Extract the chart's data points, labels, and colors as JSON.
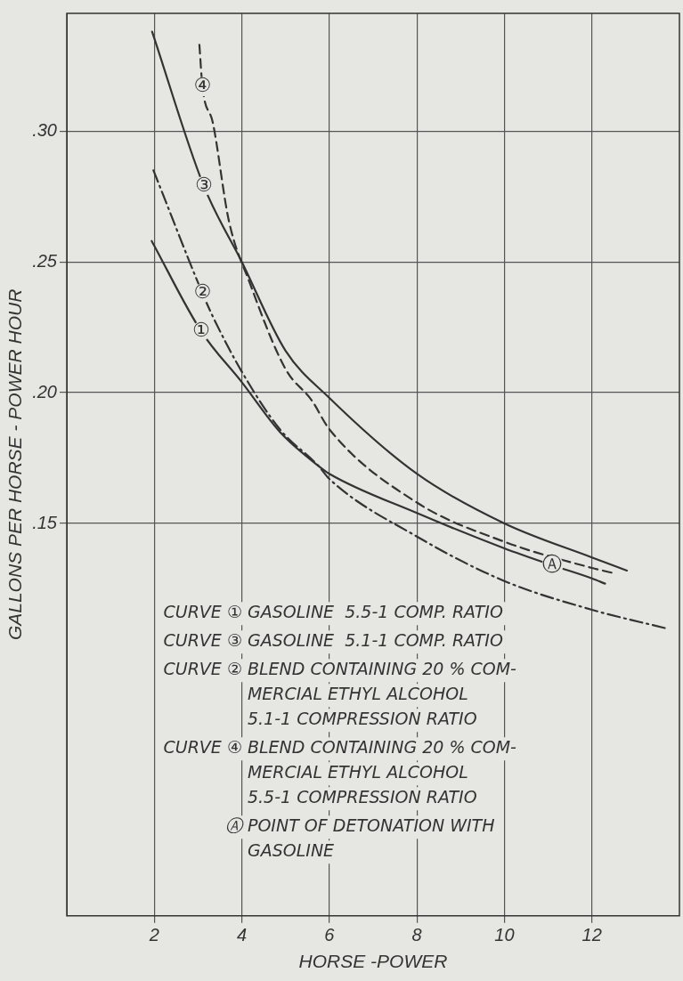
{
  "chart_data": {
    "type": "line",
    "xlabel": "HORSE -POWER",
    "ylabel": "GALLONS PER HORSE - POWER HOUR",
    "xlim": [
      0,
      14
    ],
    "xticks": [
      2,
      4,
      6,
      8,
      10,
      12
    ],
    "ylim": [
      0,
      0.345
    ],
    "yticks": [
      {
        "value": 0.15,
        "label": ".15"
      },
      {
        "value": 0.2,
        "label": ".20"
      },
      {
        "value": 0.25,
        "label": ".25"
      },
      {
        "value": 0.3,
        "label": ".30"
      }
    ],
    "grid": true,
    "legend": false,
    "marker": "none",
    "series": [
      {
        "name": "③",
        "color": "#333333",
        "line_style": "solid",
        "x": [
          1.95,
          3.13,
          4,
          5,
          6,
          8,
          10,
          12,
          12.8
        ],
        "values": [
          0.338,
          0.279,
          0.25,
          0.216,
          0.198,
          0.169,
          0.15,
          0.137,
          0.132
        ]
      },
      {
        "name": "④",
        "color": "#333333",
        "line_style": "dashed",
        "x": [
          3.03,
          3.1,
          3.34,
          3.7,
          4.18,
          5,
          5.6,
          6,
          8,
          10,
          12,
          12.5
        ],
        "values": [
          0.333,
          0.317,
          0.303,
          0.266,
          0.242,
          0.209,
          0.197,
          0.186,
          0.158,
          0.143,
          0.133,
          0.131
        ]
      },
      {
        "name": "②",
        "color": "#333333",
        "line_style": "dashdot",
        "x": [
          1.98,
          3.1,
          3.34,
          4,
          4.87,
          5.75,
          6,
          8,
          10,
          12,
          13.67
        ],
        "values": [
          0.285,
          0.238,
          0.229,
          0.208,
          0.186,
          0.172,
          0.167,
          0.145,
          0.128,
          0.117,
          0.11
        ]
      },
      {
        "name": "①",
        "color": "#333333",
        "line_style": "solid",
        "x": [
          1.94,
          3.07,
          4,
          4.87,
          5.75,
          6,
          8,
          10,
          11.1,
          12,
          12.3
        ],
        "values": [
          0.258,
          0.2235,
          0.204,
          0.185,
          0.172,
          0.169,
          0.154,
          0.1405,
          0.134,
          0.129,
          0.127
        ]
      }
    ],
    "annotations": [
      {
        "text": "Ⓐ",
        "x": 11.1,
        "y": 0.134
      },
      "CURVE ① GASOLINE  5.5-1 COMP. RATIO",
      "CURVE ③ GASOLINE  5.1-1 COMP. RATIO",
      "CURVE ② BLEND CONTAINING 20 % COM-\nMERCIAL ETHYL ALCOHOL\n5.1-1 COMPRESSION RATIO",
      "CURVE ④ BLEND CONTAINING 20 % COM-\nMERCIAL ETHYL ALCOHOL\n5.5-1 COMPRESSION RATIO",
      "Ⓐ POINT OF DETONATION WITH\nGASOLINE"
    ]
  }
}
